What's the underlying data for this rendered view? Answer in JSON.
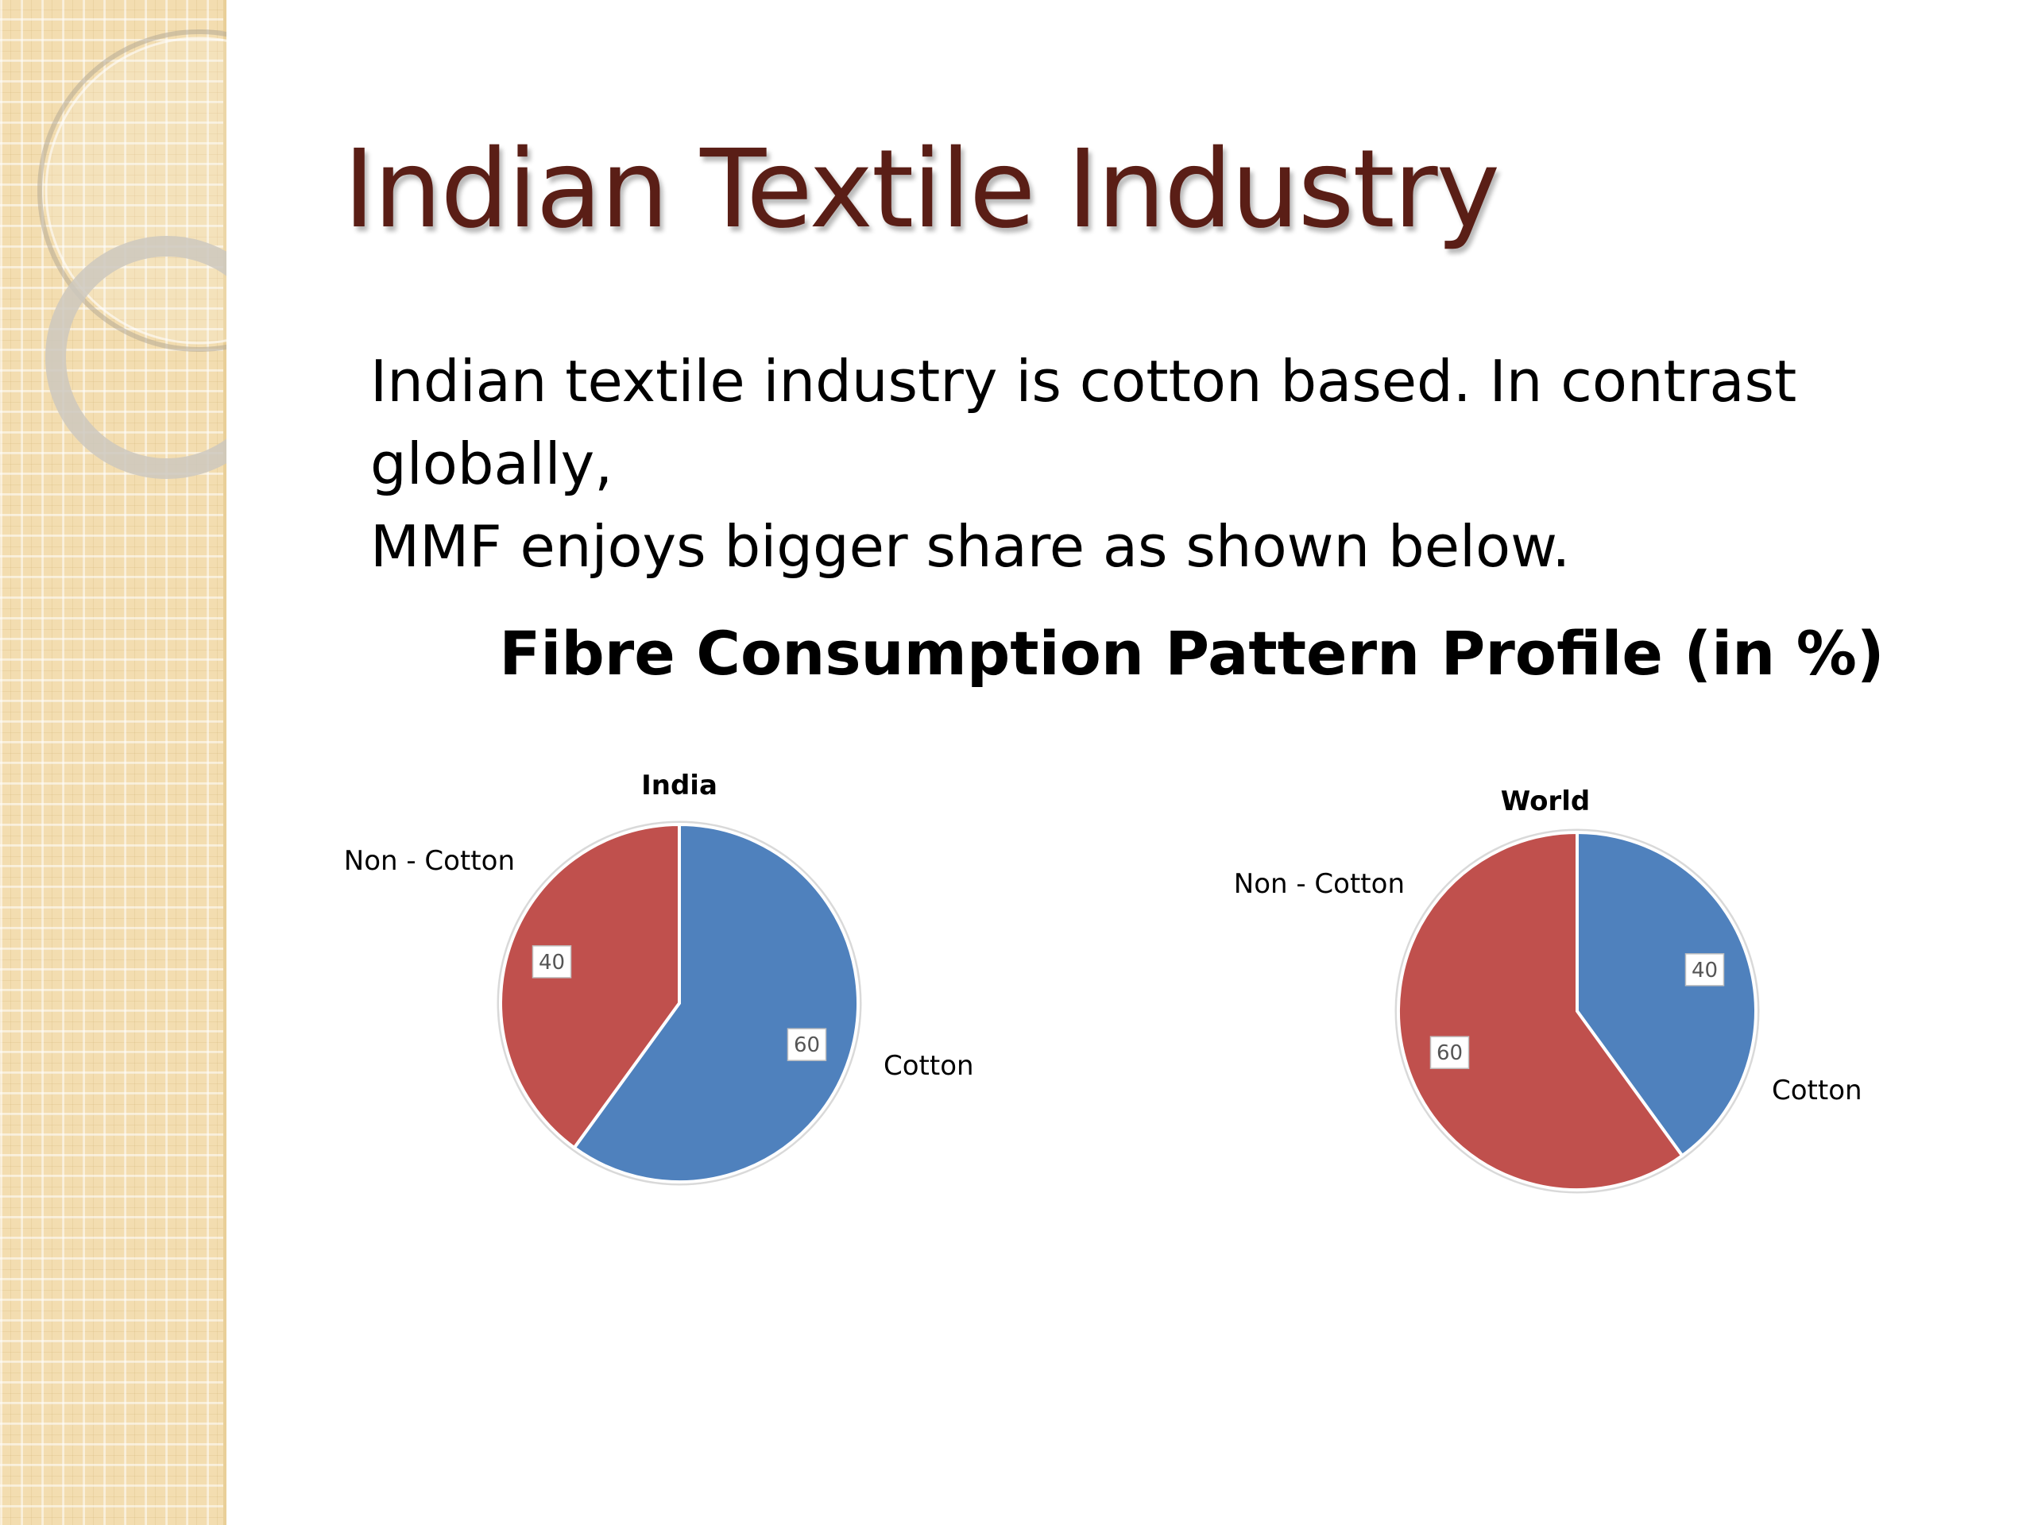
{
  "slide": {
    "title": "Indian Textile Industry",
    "body_lines": [
      "Indian textile industry is cotton based. In contrast globally,",
      "MMF enjoys bigger share as shown below."
    ]
  },
  "colors": {
    "cotton": "#4f81bd",
    "non_cotton": "#c0504d",
    "title": "#5a1e16"
  },
  "chart_heading": "Fibre Consumption Pattern Profile (in %)",
  "chart_data": [
    {
      "type": "pie",
      "title": "India",
      "slices": [
        {
          "label": "Cotton",
          "value": 60
        },
        {
          "label": "Non - Cotton",
          "value": 40
        }
      ]
    },
    {
      "type": "pie",
      "title": "World",
      "slices": [
        {
          "label": "Cotton",
          "value": 40
        },
        {
          "label": "Non - Cotton",
          "value": 60
        }
      ]
    }
  ]
}
